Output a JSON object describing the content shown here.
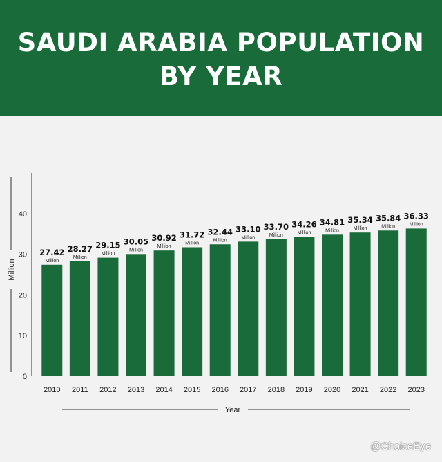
{
  "header": {
    "title_line1": "SAUDI ARABIA POPULATION",
    "title_line2": "BY YEAR"
  },
  "watermark": "@ChoiceEye",
  "colors": {
    "bar": "#1a6b3a",
    "header": "#1a6b3a",
    "background": "#f2f2f2"
  },
  "chart_data": {
    "type": "bar",
    "xlabel": "Year",
    "ylabel": "Million",
    "ylim": [
      0,
      50
    ],
    "yticks": [
      0,
      10,
      20,
      30,
      40
    ],
    "grid": false,
    "categories": [
      "2010",
      "2011",
      "2012",
      "2013",
      "2014",
      "2015",
      "2016",
      "2017",
      "2018",
      "2019",
      "2020",
      "2021",
      "2022",
      "2023"
    ],
    "values": [
      27.42,
      28.27,
      29.15,
      30.05,
      30.92,
      31.72,
      32.44,
      33.1,
      33.7,
      34.26,
      34.81,
      35.34,
      35.84,
      36.33
    ],
    "value_labels": [
      "27.42",
      "28.27",
      "29.15",
      "30.05",
      "30.92",
      "31.72",
      "32.44",
      "33.10",
      "33.70",
      "34.26",
      "34.81",
      "35.34",
      "35.84",
      "36.33"
    ],
    "value_unit": "Million"
  }
}
